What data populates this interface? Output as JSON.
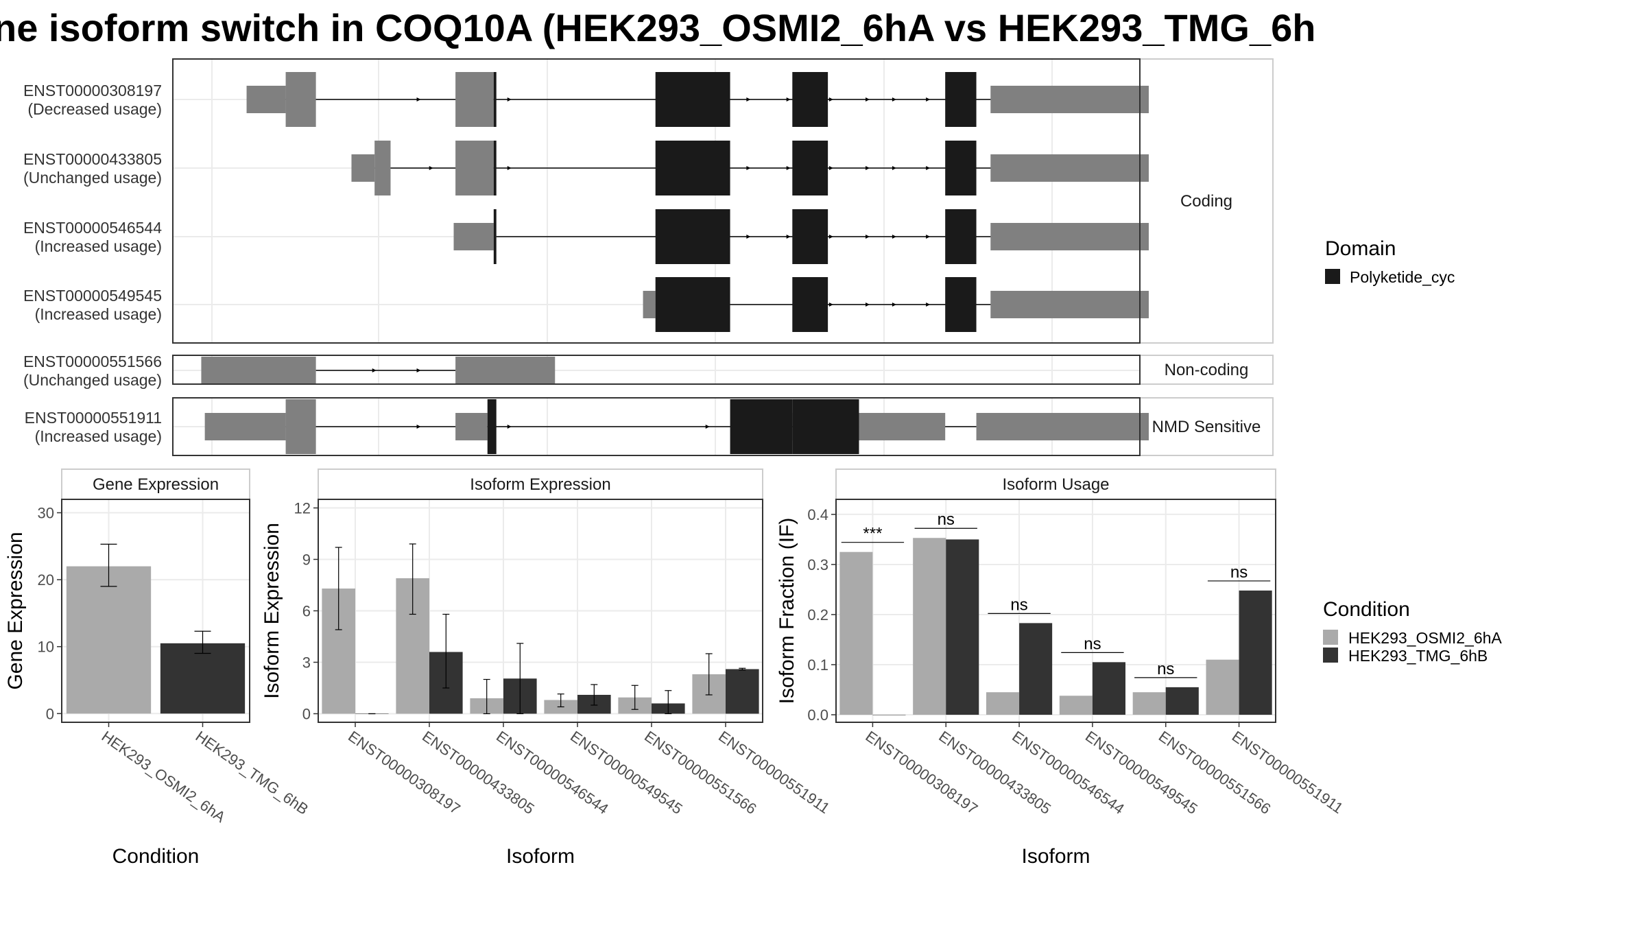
{
  "title": "ne isoform switch in COQ10A (HEK293_OSMI2_6hA vs HEK293_TMG_6h",
  "colors": {
    "cond1": "#aaaaaa",
    "cond2": "#333333",
    "exon_utr": "#808080",
    "domain": "#1a1a1a",
    "grid": "#ebebeb",
    "panel_border": "#333333",
    "strip_border": "#cccccc"
  },
  "structure": {
    "genomic_range": [
      0,
      1000
    ],
    "tracks": [
      {
        "id": "ENST00000308197",
        "usage": "(Decreased usage)",
        "category": "Coding",
        "line": [
          83,
          917
        ],
        "utr_thin": [
          [
            39,
            83
          ],
          [
            876,
            1054
          ]
        ],
        "utr_thick": [
          [
            83,
            117
          ],
          [
            274,
            317
          ]
        ],
        "cds": [
          [
            317,
            320
          ],
          [
            499,
            583
          ],
          [
            653,
            693
          ],
          [
            825,
            860
          ]
        ],
        "arrows": [
          235,
          285,
          337,
          560,
          606,
          651,
          699,
          740,
          770,
          808
        ]
      },
      {
        "id": "ENST00000433805",
        "usage": "(Unchanged usage)",
        "category": "Coding",
        "line": [
          183,
          917
        ],
        "utr_thin": [
          [
            157,
            183
          ],
          [
            876,
            1054
          ]
        ],
        "utr_thick": [
          [
            183,
            201
          ],
          [
            274,
            317
          ]
        ],
        "cds": [
          [
            317,
            320
          ],
          [
            499,
            583
          ],
          [
            653,
            693
          ],
          [
            825,
            860
          ]
        ],
        "arrows": [
          249,
          285,
          337,
          560,
          606,
          651,
          699,
          740,
          770,
          808
        ]
      },
      {
        "id": "ENST00000546544",
        "usage": "(Increased usage)",
        "category": "Coding",
        "line": [
          320,
          917
        ],
        "utr_thin": [
          [
            272,
            317
          ],
          [
            876,
            1054
          ]
        ],
        "utr_thick": [],
        "cds": [
          [
            317,
            320
          ],
          [
            499,
            583
          ],
          [
            653,
            693
          ],
          [
            825,
            860
          ]
        ],
        "arrows": [
          560,
          606,
          651,
          699,
          740,
          770,
          808
        ]
      },
      {
        "id": "ENST00000549545",
        "usage": "(Increased usage)",
        "category": "Coding",
        "line": [
          583,
          917
        ],
        "utr_thin": [
          [
            485,
            499
          ],
          [
            876,
            1054
          ]
        ],
        "utr_thick": [],
        "cds": [
          [
            499,
            583
          ],
          [
            653,
            693
          ],
          [
            825,
            860
          ]
        ],
        "arrows": [
          699,
          740,
          770,
          808
        ]
      },
      {
        "id": "ENST00000551566",
        "usage": "(Unchanged usage)",
        "category": "Non-coding",
        "line": [
          117,
          274
        ],
        "utr_thin": [
          [
            -12,
            117
          ],
          [
            274,
            386
          ]
        ],
        "utr_thick": [],
        "cds": [],
        "arrows": [
          185,
          235,
          285
        ]
      },
      {
        "id": "ENST00000551911",
        "usage": "(Increased usage)",
        "category": "NMD Sensitive",
        "line": [
          83,
          860
        ],
        "utr_thin": [
          [
            -8,
            83
          ],
          [
            274,
            310
          ],
          [
            653,
            693
          ],
          [
            728,
            825
          ],
          [
            860,
            1054
          ]
        ],
        "utr_thick": [
          [
            83,
            117
          ]
        ],
        "cds": [
          [
            310,
            320
          ],
          [
            583,
            653
          ],
          [
            653,
            728
          ]
        ],
        "arrows": [
          235,
          285,
          337,
          560,
          606,
          651,
          699,
          740,
          770,
          808
        ]
      }
    ],
    "categories": [
      "Coding",
      "Non-coding",
      "NMD Sensitive"
    ],
    "domain_legend": {
      "title": "Domain",
      "items": [
        "Polyketide_cyc"
      ]
    }
  },
  "chart_data": [
    {
      "type": "bar",
      "title": "Gene Expression",
      "xlabel": "Condition",
      "ylabel": "Gene Expression",
      "categories": [
        "HEK293_OSMI2_6hA",
        "HEK293_TMG_6hB"
      ],
      "values": [
        22.0,
        10.5
      ],
      "error_low": [
        19.0,
        9.0
      ],
      "error_high": [
        25.3,
        12.3
      ],
      "ylim": [
        -1.3,
        32
      ],
      "yticks": [
        0,
        10,
        20,
        30
      ]
    },
    {
      "type": "bar",
      "title": "Isoform Expression",
      "xlabel": "Isoform",
      "ylabel": "Isoform Expression",
      "categories": [
        "ENST00000308197",
        "ENST00000433805",
        "ENST00000546544",
        "ENST00000549545",
        "ENST00000551566",
        "ENST00000551911"
      ],
      "series": [
        {
          "name": "HEK293_OSMI2_6hA",
          "values": [
            7.3,
            7.9,
            0.9,
            0.8,
            0.95,
            2.3
          ],
          "low": [
            4.9,
            5.8,
            0.0,
            0.4,
            0.25,
            1.1
          ],
          "high": [
            9.7,
            9.9,
            2.0,
            1.15,
            1.65,
            3.5
          ]
        },
        {
          "name": "HEK293_TMG_6hB",
          "values": [
            0.0,
            3.6,
            2.05,
            1.1,
            0.6,
            2.6
          ],
          "low": [
            0.0,
            1.5,
            0.0,
            0.5,
            0.0,
            2.55
          ],
          "high": [
            0.0,
            5.8,
            4.1,
            1.7,
            1.35,
            2.65
          ]
        }
      ],
      "ylim": [
        -0.5,
        12.5
      ],
      "yticks": [
        0,
        3,
        6,
        9,
        12
      ]
    },
    {
      "type": "bar",
      "title": "Isoform Usage",
      "xlabel": "Isoform",
      "ylabel": "Isoform Fraction (IF)",
      "categories": [
        "ENST00000308197",
        "ENST00000433805",
        "ENST00000546544",
        "ENST00000549545",
        "ENST00000551566",
        "ENST00000551911"
      ],
      "series": [
        {
          "name": "HEK293_OSMI2_6hA",
          "values": [
            0.325,
            0.353,
            0.045,
            0.038,
            0.045,
            0.11
          ]
        },
        {
          "name": "HEK293_TMG_6hB",
          "values": [
            0.0,
            0.35,
            0.183,
            0.105,
            0.055,
            0.248
          ]
        }
      ],
      "significance": [
        "***",
        "ns",
        "ns",
        "ns",
        "ns",
        "ns"
      ],
      "ylim": [
        -0.015,
        0.43
      ],
      "yticks": [
        0.0,
        0.1,
        0.2,
        0.3,
        0.4
      ]
    }
  ],
  "condition_legend": {
    "title": "Condition",
    "items": [
      "HEK293_OSMI2_6hA",
      "HEK293_TMG_6hB"
    ]
  }
}
